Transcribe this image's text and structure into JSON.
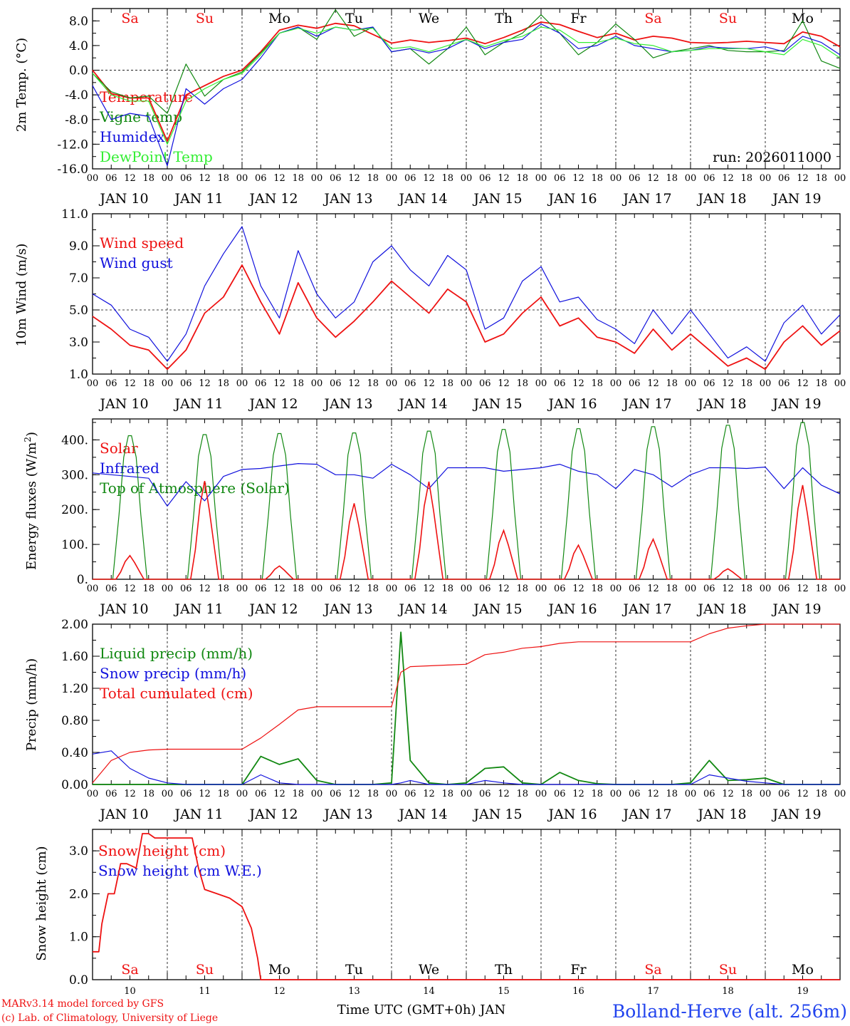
{
  "colors": {
    "red": "#ee1111",
    "green": "#118811",
    "blue": "#1111dd",
    "lightgreen": "#33ee33",
    "black": "#000000",
    "footer_blue": "#2244ee"
  },
  "days": {
    "top_labels": [
      "Sa",
      "Su",
      "Mo",
      "Tu",
      "We",
      "Th",
      "Fr",
      "Sa",
      "Su",
      "Mo"
    ],
    "top_colors": [
      "red",
      "red",
      "black",
      "black",
      "black",
      "black",
      "black",
      "red",
      "red",
      "black"
    ],
    "hour_ticks": [
      "00",
      "06",
      "12",
      "18"
    ],
    "final_tick": "00",
    "date_labels": [
      "JAN 10",
      "JAN 11",
      "JAN 12",
      "JAN 13",
      "JAN 14",
      "JAN 15",
      "JAN 16",
      "JAN 17",
      "JAN 18",
      "JAN 19"
    ],
    "bottom_numbers": [
      "10",
      "11",
      "12",
      "13",
      "14",
      "15",
      "16",
      "17",
      "18",
      "19"
    ]
  },
  "run_label": "run: 2026011000",
  "footer": {
    "model": "MARv3.14 model forced by GFS",
    "lab": "(c) Lab. of Climatology, University of Liege",
    "xlabel": "Time UTC (GMT+0h) JAN",
    "station": "Bolland-Herve (alt. 256m)"
  },
  "chart_data": [
    {
      "type": "line",
      "ylabel": "2m Temp. (°C)",
      "ylim": [
        -16,
        10
      ],
      "yticks": [
        "8.0",
        "4.0",
        "0.0",
        "-4.0",
        "-8.0",
        "-12.0",
        "-16.0"
      ],
      "ytick_values": [
        8,
        4,
        0,
        -4,
        -8,
        -12,
        -16
      ],
      "ref_line": 0,
      "x_hours": [
        0,
        6,
        12,
        18,
        24,
        30,
        36,
        42,
        48,
        54,
        60,
        66,
        72,
        78,
        84,
        90,
        96,
        102,
        108,
        114,
        120,
        126,
        132,
        138,
        144,
        150,
        156,
        162,
        168,
        174,
        180,
        186,
        192,
        198,
        204,
        210,
        216,
        222,
        228,
        234,
        240
      ],
      "series": [
        {
          "name": "Temperature",
          "color": "red",
          "values": [
            0.0,
            -3.8,
            -4.5,
            -4.5,
            -11.5,
            -4.0,
            -2.5,
            -1.0,
            0.0,
            3.0,
            6.5,
            7.3,
            6.8,
            7.6,
            7.2,
            5.8,
            4.4,
            4.9,
            4.5,
            4.8,
            5.2,
            4.3,
            5.3,
            6.5,
            7.8,
            7.4,
            6.3,
            5.3,
            6.0,
            4.9,
            5.5,
            5.2,
            4.5,
            4.4,
            4.5,
            4.7,
            4.5,
            4.3,
            6.2,
            5.5,
            3.8
          ]
        },
        {
          "name": "Vigne temp",
          "color": "green",
          "values": [
            -0.5,
            -3.5,
            -4.5,
            -4.2,
            -7.0,
            1.0,
            -4.2,
            -1.5,
            -0.3,
            2.8,
            6.0,
            7.0,
            5.0,
            9.8,
            5.5,
            7.0,
            3.0,
            3.5,
            1.0,
            3.5,
            7.0,
            2.5,
            4.5,
            6.0,
            9.0,
            6.0,
            2.5,
            4.5,
            7.5,
            5.0,
            2.0,
            3.0,
            3.5,
            4.0,
            3.2,
            3.0,
            3.0,
            3.2,
            8.0,
            1.5,
            0.3
          ]
        },
        {
          "name": "Humidex",
          "color": "blue",
          "values": [
            -2.5,
            -8.0,
            -7.0,
            -7.5,
            -15.5,
            -3.0,
            -5.5,
            -3.0,
            -1.5,
            2.0,
            6.0,
            7.0,
            5.5,
            7.0,
            6.5,
            7.0,
            3.0,
            3.5,
            2.8,
            3.5,
            5.0,
            3.5,
            4.5,
            5.0,
            7.5,
            6.0,
            3.5,
            4.0,
            5.5,
            4.0,
            3.5,
            3.0,
            3.2,
            3.8,
            3.6,
            3.5,
            3.8,
            3.0,
            5.5,
            4.5,
            2.5
          ]
        },
        {
          "name": "DewPoint Temp",
          "color": "lightgreen",
          "values": [
            -0.5,
            -4.0,
            -5.0,
            -5.0,
            -12.0,
            -5.0,
            -3.0,
            -1.5,
            -0.5,
            2.5,
            6.0,
            6.8,
            6.0,
            7.0,
            6.5,
            6.8,
            3.5,
            3.8,
            3.0,
            4.0,
            5.0,
            3.8,
            4.8,
            5.5,
            7.0,
            6.5,
            4.5,
            4.5,
            5.2,
            4.3,
            4.0,
            3.0,
            3.2,
            3.5,
            3.5,
            3.5,
            3.0,
            2.5,
            5.0,
            4.0,
            2.0
          ]
        }
      ]
    },
    {
      "type": "line",
      "ylabel": "10m Wind (m/s)",
      "ylim": [
        1,
        11
      ],
      "yticks": [
        "11.0",
        "9.0",
        "7.0",
        "5.0",
        "3.0",
        "1.0"
      ],
      "ytick_values": [
        11,
        9,
        7,
        5,
        3,
        1
      ],
      "ref_line": 5,
      "x_hours": [
        0,
        6,
        12,
        18,
        24,
        30,
        36,
        42,
        48,
        54,
        60,
        66,
        72,
        78,
        84,
        90,
        96,
        102,
        108,
        114,
        120,
        126,
        132,
        138,
        144,
        150,
        156,
        162,
        168,
        174,
        180,
        186,
        192,
        198,
        204,
        210,
        216,
        222,
        228,
        234,
        240
      ],
      "series": [
        {
          "name": "Wind speed",
          "color": "red",
          "values": [
            4.6,
            3.8,
            2.8,
            2.5,
            1.3,
            2.5,
            4.8,
            5.8,
            7.8,
            5.5,
            3.5,
            6.7,
            4.5,
            3.3,
            4.3,
            5.5,
            6.8,
            5.8,
            4.8,
            6.3,
            5.5,
            3.0,
            3.5,
            4.8,
            5.8,
            4.0,
            4.5,
            3.3,
            3.0,
            2.3,
            3.8,
            2.5,
            3.5,
            2.5,
            1.5,
            2.0,
            1.3,
            3.0,
            4.0,
            2.8,
            3.7
          ]
        },
        {
          "name": "Wind gust",
          "color": "blue",
          "values": [
            6.0,
            5.3,
            3.8,
            3.3,
            1.8,
            3.5,
            6.5,
            8.5,
            10.2,
            6.5,
            4.5,
            8.7,
            6.0,
            4.5,
            5.5,
            8.0,
            9.0,
            7.5,
            6.5,
            8.4,
            7.5,
            3.8,
            4.5,
            6.8,
            7.7,
            5.5,
            5.8,
            4.4,
            3.8,
            2.9,
            5.0,
            3.5,
            5.0,
            3.5,
            2.0,
            2.7,
            1.8,
            4.2,
            5.3,
            3.5,
            4.7
          ]
        }
      ]
    },
    {
      "type": "line",
      "ylabel": "Energy fluxes (W/m²)",
      "ylim": [
        0,
        460
      ],
      "yticks": [
        "400.",
        "300.",
        "200.",
        "100.",
        "0."
      ],
      "ytick_values": [
        400,
        300,
        200,
        100,
        0
      ],
      "x_hours": [
        0,
        6,
        12,
        18,
        24,
        30,
        36,
        42,
        48,
        54,
        60,
        66,
        72,
        78,
        84,
        90,
        96,
        102,
        108,
        114,
        120,
        126,
        132,
        138,
        144,
        150,
        156,
        162,
        168,
        174,
        180,
        186,
        192,
        198,
        204,
        210,
        216,
        222,
        228,
        234,
        240
      ],
      "series": [
        {
          "name": "Infrared",
          "color": "blue",
          "values": [
            305,
            300,
            295,
            290,
            210,
            280,
            225,
            295,
            315,
            318,
            325,
            332,
            330,
            300,
            300,
            290,
            330,
            300,
            260,
            320,
            320,
            320,
            310,
            315,
            320,
            330,
            310,
            300,
            260,
            315,
            300,
            265,
            300,
            320,
            320,
            318,
            322,
            260,
            320,
            270,
            245
          ]
        }
      ],
      "daily_peaks": {
        "top_of_atmosphere": [
          412,
          415,
          418,
          420,
          425,
          430,
          432,
          438,
          442,
          450
        ],
        "solar": [
          68,
          282,
          38,
          218,
          280,
          140,
          98,
          115,
          30,
          270
        ]
      }
    },
    {
      "type": "line",
      "ylabel": "Precip (mm/h)",
      "ylim": [
        0,
        2
      ],
      "yticks": [
        "2.00",
        "1.60",
        "1.20",
        "0.80",
        "0.40",
        "0.00"
      ],
      "ytick_values": [
        2.0,
        1.6,
        1.2,
        0.8,
        0.4,
        0.0
      ],
      "x_hours": [
        0,
        6,
        12,
        18,
        24,
        30,
        36,
        42,
        48,
        54,
        60,
        66,
        72,
        78,
        84,
        90,
        96,
        99,
        102,
        108,
        114,
        120,
        126,
        132,
        138,
        144,
        150,
        156,
        162,
        168,
        174,
        180,
        186,
        192,
        198,
        204,
        210,
        216,
        222,
        228,
        234,
        240
      ],
      "series": [
        {
          "name": "Liquid precip (mm/h)",
          "color": "green",
          "values": [
            0,
            0,
            0,
            0,
            0,
            0,
            0,
            0,
            0,
            0.35,
            0.25,
            0.32,
            0.05,
            0,
            0,
            0,
            0.02,
            1.9,
            0.3,
            0.02,
            0,
            0.02,
            0.2,
            0.22,
            0.02,
            0,
            0.15,
            0.05,
            0.01,
            0,
            0,
            0,
            0,
            0.02,
            0.3,
            0.05,
            0.06,
            0.08,
            0,
            0,
            0,
            0
          ]
        },
        {
          "name": "Snow precip (mm/h)",
          "color": "blue",
          "values": [
            0.38,
            0.42,
            0.2,
            0.08,
            0.02,
            0,
            0,
            0,
            0,
            0.12,
            0.02,
            0,
            0,
            0,
            0,
            0,
            0,
            0.02,
            0.05,
            0,
            0,
            0,
            0.05,
            0.02,
            0,
            0,
            0,
            0,
            0,
            0,
            0,
            0,
            0,
            0,
            0.12,
            0.08,
            0.04,
            0.02,
            0,
            0,
            0,
            0
          ]
        },
        {
          "name": "Total cumulated (cm)",
          "color": "red",
          "values": [
            0.02,
            0.3,
            0.4,
            0.43,
            0.44,
            0.44,
            0.44,
            0.44,
            0.44,
            0.58,
            0.75,
            0.93,
            0.97,
            0.97,
            0.97,
            0.97,
            0.97,
            1.4,
            1.47,
            1.48,
            1.49,
            1.5,
            1.62,
            1.65,
            1.7,
            1.72,
            1.76,
            1.78,
            1.78,
            1.78,
            1.78,
            1.78,
            1.78,
            1.78,
            1.88,
            1.95,
            1.98,
            2.0,
            2.0,
            2.0,
            2.0,
            2.0
          ]
        }
      ]
    },
    {
      "type": "line",
      "ylabel": "Snow height (cm)",
      "ylim": [
        0,
        3.5
      ],
      "yticks": [
        "3.0",
        "2.0",
        "1.0",
        "0.0"
      ],
      "ytick_values": [
        3.0,
        2.0,
        1.0,
        0.0
      ],
      "x_hours": [
        0,
        2,
        3,
        5,
        7,
        9,
        11,
        14,
        16,
        18,
        20,
        22,
        24,
        28,
        32,
        34,
        36,
        40,
        44,
        48,
        51,
        53,
        54,
        56,
        240
      ],
      "series": [
        {
          "name": "Snow height (cm)",
          "color": "red",
          "values": [
            0.65,
            0.65,
            1.3,
            2.0,
            2.0,
            2.7,
            2.7,
            2.6,
            3.4,
            3.4,
            3.3,
            3.3,
            3.3,
            3.3,
            3.3,
            2.6,
            2.1,
            2.0,
            1.9,
            1.7,
            1.2,
            0.5,
            0.0,
            0.0,
            0.0
          ]
        },
        {
          "name": "Snow height (cm W.E.)",
          "color": "blue",
          "values": []
        }
      ]
    }
  ]
}
